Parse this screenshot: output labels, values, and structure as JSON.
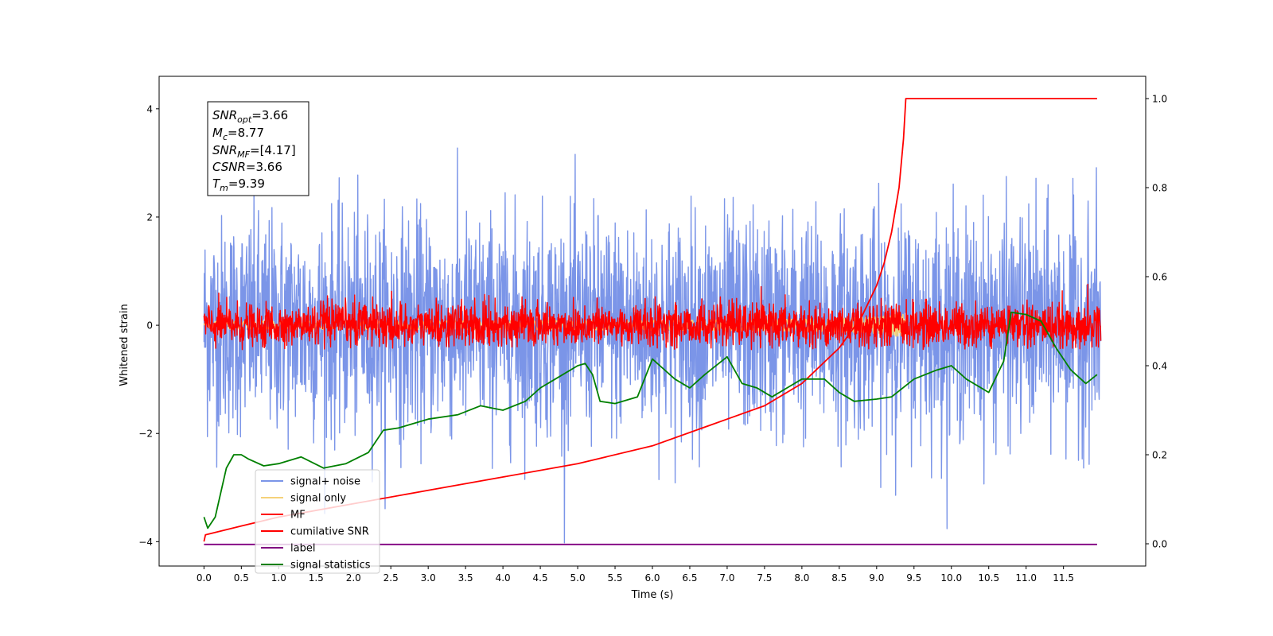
{
  "chart_data": {
    "type": "line",
    "xlabel": "Time (s)",
    "ylabel": "Whitened strain",
    "xlim": [
      -0.6,
      12.6
    ],
    "ylim": [
      -4.45,
      4.6
    ],
    "y2lim": [
      -0.05,
      1.05
    ],
    "x_ticks": [
      0.0,
      0.5,
      1.0,
      1.5,
      2.0,
      2.5,
      3.0,
      3.5,
      4.0,
      4.5,
      5.0,
      5.5,
      6.0,
      6.5,
      7.0,
      7.5,
      8.0,
      8.5,
      9.0,
      9.5,
      10.0,
      10.5,
      11.0,
      11.5
    ],
    "x_tick_labels": [
      "0.0",
      "0.5",
      "1.0",
      "1.5",
      "2.0",
      "2.5",
      "3.0",
      "3.5",
      "4.0",
      "4.5",
      "5.0",
      "5.5",
      "6.0",
      "6.5",
      "7.0",
      "7.5",
      "8.0",
      "8.5",
      "9.0",
      "9.5",
      "10.0",
      "10.5",
      "11.0",
      "11.5"
    ],
    "y_ticks": [
      -4,
      -2,
      0,
      2,
      4
    ],
    "y_tick_labels": [
      "−4",
      "−2",
      "0",
      "2",
      "4"
    ],
    "y2_ticks": [
      0.0,
      0.2,
      0.4,
      0.6,
      0.8,
      1.0
    ],
    "y2_tick_labels": [
      "0.0",
      "0.2",
      "0.4",
      "0.6",
      "0.8",
      "1.0"
    ],
    "grid": false,
    "legend_position": "bottom-left",
    "series": [
      {
        "name": "signal+ noise",
        "axis": "left",
        "color": "#7b95e8",
        "kind": "noise",
        "t_range": [
          0.0,
          12.0
        ],
        "mean": 0.0,
        "std": 1.0,
        "range": [
          -4.05,
          4.15
        ]
      },
      {
        "name": "signal only",
        "axis": "left",
        "color": "#f5d27a",
        "kind": "chirp",
        "t_range": [
          0.0,
          9.39
        ],
        "amplitude_max": 0.2
      },
      {
        "name": "MF",
        "axis": "left",
        "color": "#ff0000",
        "kind": "noise",
        "t_range": [
          0.0,
          12.0
        ],
        "mean": 0.0,
        "std": 0.2,
        "range": [
          -0.45,
          1.0
        ]
      },
      {
        "name": "cumilative SNR",
        "axis": "right",
        "color": "#ff0000",
        "x": [
          0.0,
          0.02,
          0.5,
          1.0,
          2.0,
          3.0,
          4.0,
          5.0,
          6.0,
          7.0,
          7.5,
          8.0,
          8.5,
          8.8,
          9.0,
          9.1,
          9.2,
          9.3,
          9.36,
          9.39,
          11.95
        ],
        "values": [
          0.005,
          0.02,
          0.04,
          0.06,
          0.09,
          0.12,
          0.15,
          0.18,
          0.22,
          0.28,
          0.31,
          0.36,
          0.44,
          0.51,
          0.58,
          0.63,
          0.7,
          0.8,
          0.91,
          1.0,
          1.0
        ]
      },
      {
        "name": "label",
        "axis": "left",
        "color": "#800080",
        "x": [
          0.0,
          11.95
        ],
        "values": [
          -4.05,
          -4.05
        ]
      },
      {
        "name": "signal statistics",
        "axis": "right",
        "color": "#008000",
        "x": [
          0.0,
          0.05,
          0.15,
          0.3,
          0.4,
          0.5,
          0.6,
          0.8,
          1.0,
          1.3,
          1.6,
          1.9,
          2.2,
          2.4,
          2.6,
          3.0,
          3.4,
          3.7,
          4.0,
          4.3,
          4.5,
          4.7,
          5.0,
          5.1,
          5.2,
          5.3,
          5.5,
          5.8,
          6.0,
          6.1,
          6.3,
          6.5,
          6.7,
          7.0,
          7.2,
          7.4,
          7.6,
          7.8,
          8.0,
          8.3,
          8.5,
          8.7,
          9.0,
          9.2,
          9.5,
          9.8,
          10.0,
          10.2,
          10.5,
          10.7,
          10.8,
          11.0,
          11.2,
          11.4,
          11.6,
          11.8,
          11.95
        ],
        "values": [
          0.06,
          0.035,
          0.06,
          0.17,
          0.2,
          0.2,
          0.19,
          0.175,
          0.18,
          0.195,
          0.17,
          0.18,
          0.205,
          0.255,
          0.26,
          0.28,
          0.29,
          0.31,
          0.3,
          0.32,
          0.35,
          0.37,
          0.4,
          0.405,
          0.38,
          0.32,
          0.315,
          0.33,
          0.415,
          0.4,
          0.37,
          0.35,
          0.38,
          0.42,
          0.36,
          0.35,
          0.33,
          0.35,
          0.37,
          0.37,
          0.34,
          0.32,
          0.325,
          0.33,
          0.37,
          0.39,
          0.4,
          0.37,
          0.34,
          0.41,
          0.52,
          0.515,
          0.5,
          0.44,
          0.39,
          0.36,
          0.38
        ]
      }
    ],
    "annotation_box": {
      "lines": [
        {
          "base": "SNR",
          "sub": "opt",
          "value": "=3.66"
        },
        {
          "base": "M",
          "sub": "c",
          "value": "=8.77"
        },
        {
          "base": "SNR",
          "sub": "MF",
          "value": "=[4.17]"
        },
        {
          "base": "CSNR",
          "sub": "",
          "value": "=3.66"
        },
        {
          "base": "T",
          "sub": "m",
          "value": "=9.39"
        }
      ]
    }
  }
}
